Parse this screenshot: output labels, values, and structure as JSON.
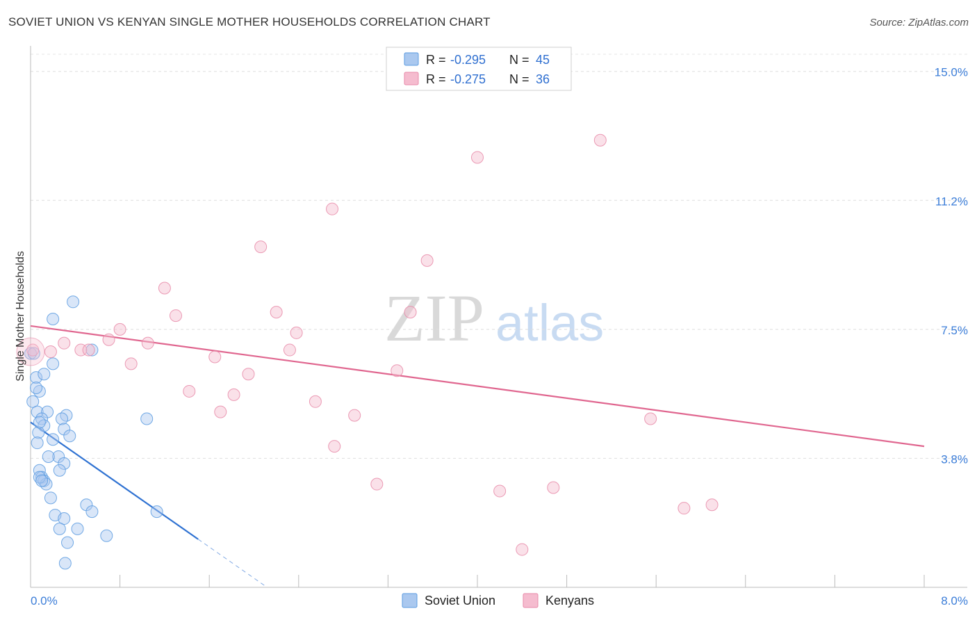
{
  "title": "SOVIET UNION VS KENYAN SINGLE MOTHER HOUSEHOLDS CORRELATION CHART",
  "source": "Source: ZipAtlas.com",
  "watermark": {
    "zip": "ZIP",
    "atlas": "atlas"
  },
  "colors": {
    "blue": "#5b9be0",
    "blue_fill": "#aac8ef",
    "blue_line": "#2f72d2",
    "pink": "#e889a8",
    "pink_fill": "#f5bccf",
    "pink_line": "#e0668f",
    "axis_text": "#3b7dd8"
  },
  "legend": {
    "rows": [
      {
        "r_label": "R =",
        "r_value": "-0.295",
        "n_label": "N =",
        "n_value": "45"
      },
      {
        "r_label": "R =",
        "r_value": "-0.275",
        "n_label": "N =",
        "n_value": "36"
      }
    ]
  },
  "bottom_legend": [
    "Soviet Union",
    "Kenyans"
  ],
  "chart_data": {
    "type": "scatter",
    "title": "SOVIET UNION VS KENYAN SINGLE MOTHER HOUSEHOLDS CORRELATION CHART",
    "xlabel": "",
    "ylabel": "Single Mother Households",
    "xlim": [
      0,
      8
    ],
    "ylim": [
      0,
      15.5
    ],
    "x_tick_labels": [
      "0.0%",
      "8.0%"
    ],
    "y_tick_labels": [
      "15.0%",
      "11.2%",
      "7.5%",
      "3.8%"
    ],
    "y_tick_values": [
      15.0,
      11.25,
      7.5,
      3.75
    ],
    "series": [
      {
        "name": "Soviet Union",
        "color": "blue",
        "r": -0.295,
        "n": 45,
        "points": [
          [
            0.0,
            6.8
          ],
          [
            0.05,
            6.1
          ],
          [
            0.2,
            6.5
          ],
          [
            0.12,
            6.2
          ],
          [
            0.08,
            5.7
          ],
          [
            0.05,
            5.8
          ],
          [
            0.02,
            5.4
          ],
          [
            0.06,
            5.1
          ],
          [
            0.15,
            5.1
          ],
          [
            0.32,
            5.0
          ],
          [
            0.1,
            4.9
          ],
          [
            0.28,
            4.9
          ],
          [
            0.12,
            4.7
          ],
          [
            0.3,
            4.6
          ],
          [
            0.07,
            4.5
          ],
          [
            0.35,
            4.4
          ],
          [
            0.2,
            4.3
          ],
          [
            0.06,
            4.2
          ],
          [
            0.25,
            3.8
          ],
          [
            0.3,
            3.6
          ],
          [
            0.16,
            3.8
          ],
          [
            0.26,
            3.4
          ],
          [
            0.08,
            3.4
          ],
          [
            0.1,
            3.2
          ],
          [
            0.12,
            3.1
          ],
          [
            0.14,
            3.0
          ],
          [
            0.18,
            2.6
          ],
          [
            0.5,
            2.4
          ],
          [
            0.55,
            2.2
          ],
          [
            0.22,
            2.1
          ],
          [
            0.3,
            2.0
          ],
          [
            0.26,
            1.7
          ],
          [
            0.42,
            1.7
          ],
          [
            0.68,
            1.5
          ],
          [
            0.33,
            1.3
          ],
          [
            0.31,
            0.7
          ],
          [
            0.38,
            8.3
          ],
          [
            0.2,
            7.8
          ],
          [
            0.55,
            6.9
          ],
          [
            1.04,
            4.9
          ],
          [
            1.13,
            2.2
          ],
          [
            0.03,
            6.8
          ],
          [
            0.08,
            3.2
          ],
          [
            0.1,
            3.1
          ],
          [
            0.08,
            4.8
          ]
        ]
      },
      {
        "name": "Kenyans",
        "color": "pink",
        "r": -0.275,
        "n": 36,
        "points": [
          [
            0.02,
            6.9
          ],
          [
            0.18,
            6.85
          ],
          [
            0.3,
            7.1
          ],
          [
            0.45,
            6.9
          ],
          [
            0.52,
            6.9
          ],
          [
            0.7,
            7.2
          ],
          [
            0.8,
            7.5
          ],
          [
            0.9,
            6.5
          ],
          [
            1.05,
            7.1
          ],
          [
            1.2,
            8.7
          ],
          [
            1.3,
            7.9
          ],
          [
            1.42,
            5.7
          ],
          [
            1.65,
            6.7
          ],
          [
            1.7,
            5.1
          ],
          [
            1.82,
            5.6
          ],
          [
            1.95,
            6.2
          ],
          [
            2.06,
            9.9
          ],
          [
            2.2,
            8.0
          ],
          [
            2.32,
            6.9
          ],
          [
            2.38,
            7.4
          ],
          [
            2.55,
            5.4
          ],
          [
            2.7,
            11.0
          ],
          [
            2.72,
            4.1
          ],
          [
            2.9,
            5.0
          ],
          [
            3.1,
            3.0
          ],
          [
            3.28,
            6.3
          ],
          [
            3.4,
            8.0
          ],
          [
            3.55,
            9.5
          ],
          [
            4.0,
            12.5
          ],
          [
            4.2,
            2.8
          ],
          [
            4.4,
            1.1
          ],
          [
            4.68,
            2.9
          ],
          [
            5.1,
            13.0
          ],
          [
            5.55,
            4.9
          ],
          [
            5.85,
            2.3
          ],
          [
            6.1,
            2.4
          ]
        ]
      }
    ],
    "trend_lines": [
      {
        "series": "Soviet Union",
        "x": [
          0.0,
          1.5
        ],
        "y": [
          4.8,
          1.4
        ],
        "dashed_extension_to_x": 2.1
      },
      {
        "series": "Kenyans",
        "x": [
          0.0,
          8.0
        ],
        "y": [
          7.6,
          4.1
        ]
      }
    ]
  }
}
